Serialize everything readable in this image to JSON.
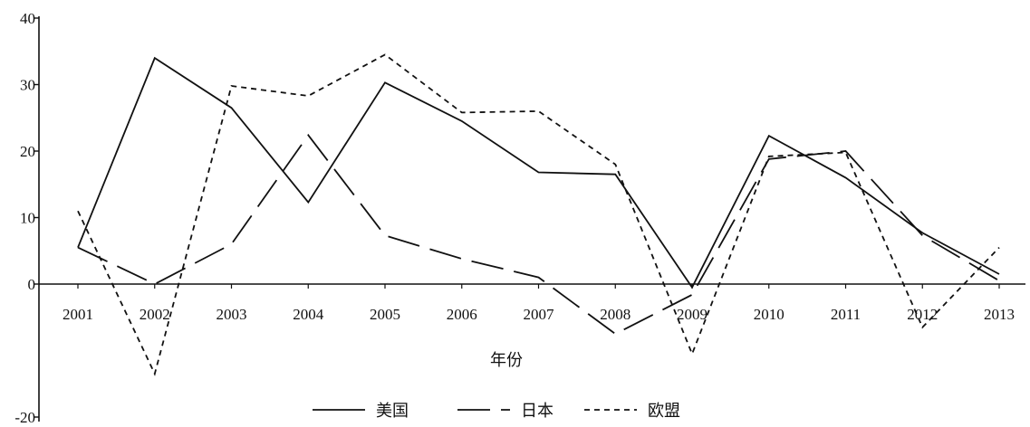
{
  "chart_data": {
    "type": "line",
    "title": "",
    "xlabel": "年份",
    "ylabel": "",
    "categories": [
      "2001",
      "2002",
      "2003",
      "2004",
      "2005",
      "2006",
      "2007",
      "2008",
      "2009",
      "2010",
      "2011",
      "2012",
      "2013"
    ],
    "ylim": [
      -20,
      40
    ],
    "y_ticks": [
      "40",
      "30",
      "20",
      "10",
      "0",
      "-20"
    ],
    "grid": false,
    "legend_position": "bottom",
    "series": [
      {
        "name": "美国",
        "dash": "solid",
        "color": "#111111",
        "values": [
          5.5,
          34,
          26.5,
          12.3,
          30.3,
          24.5,
          16.8,
          16.5,
          -0.5,
          22.3,
          16,
          7.7,
          1.5
        ]
      },
      {
        "name": "日本",
        "dash": "long-dash",
        "color": "#111111",
        "values": [
          5.5,
          0,
          6,
          22.4,
          7.3,
          3.8,
          1,
          -7.5,
          -1.6,
          18.8,
          20,
          7.3,
          0.5
        ]
      },
      {
        "name": "欧盟",
        "dash": "short-dash",
        "color": "#111111",
        "values": [
          11,
          -13.5,
          29.8,
          28.3,
          34.5,
          25.8,
          26,
          18,
          -10.5,
          19.2,
          19.8,
          -6.5,
          5.5
        ]
      }
    ]
  }
}
